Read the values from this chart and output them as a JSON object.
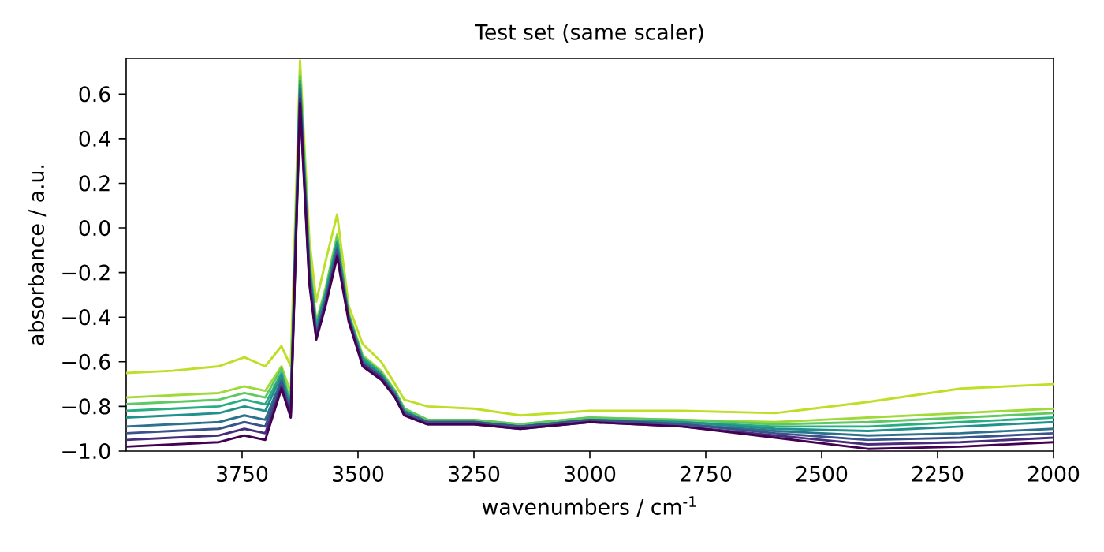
{
  "chart_data": {
    "type": "line",
    "title": "Test set (same scaler)",
    "xlabel": "wavenumbers / cm$^{-1}$",
    "ylabel": "absorbance / a.u.",
    "xlim": [
      4000,
      2000
    ],
    "ylim": [
      -1.0,
      0.76
    ],
    "xticks": [
      3750,
      3500,
      3250,
      3000,
      2750,
      2500,
      2250,
      2000
    ],
    "yticks": [
      {
        "value": -1.0,
        "label": "−1.0"
      },
      {
        "value": -0.8,
        "label": "−0.8"
      },
      {
        "value": -0.6,
        "label": "−0.6"
      },
      {
        "value": -0.4,
        "label": "−0.4"
      },
      {
        "value": -0.2,
        "label": "−0.2"
      },
      {
        "value": 0.0,
        "label": "0.0"
      },
      {
        "value": 0.2,
        "label": "0.2"
      },
      {
        "value": 0.4,
        "label": "0.4"
      },
      {
        "value": 0.6,
        "label": "0.6"
      }
    ],
    "x": [
      4000,
      3900,
      3800,
      3745,
      3700,
      3665,
      3645,
      3625,
      3605,
      3590,
      3570,
      3545,
      3520,
      3490,
      3450,
      3420,
      3400,
      3350,
      3250,
      3150,
      3000,
      2800,
      2600,
      2400,
      2200,
      2000
    ],
    "series": [
      {
        "color": "#bddf26",
        "values": [
          -0.65,
          -0.64,
          -0.62,
          -0.58,
          -0.62,
          -0.53,
          -0.62,
          0.75,
          -0.05,
          -0.33,
          -0.15,
          0.06,
          -0.35,
          -0.52,
          -0.6,
          -0.7,
          -0.77,
          -0.8,
          -0.81,
          -0.84,
          -0.82,
          -0.82,
          -0.83,
          -0.78,
          -0.72,
          -0.7
        ]
      },
      {
        "color": "#a0da39",
        "values": [
          -0.76,
          -0.75,
          -0.74,
          -0.71,
          -0.73,
          -0.62,
          -0.74,
          0.7,
          -0.12,
          -0.42,
          -0.27,
          -0.03,
          -0.38,
          -0.57,
          -0.64,
          -0.73,
          -0.81,
          -0.86,
          -0.86,
          -0.88,
          -0.85,
          -0.86,
          -0.87,
          -0.85,
          -0.83,
          -0.81
        ]
      },
      {
        "color": "#5ec962",
        "values": [
          -0.79,
          -0.78,
          -0.77,
          -0.74,
          -0.76,
          -0.63,
          -0.79,
          0.68,
          -0.14,
          -0.43,
          -0.28,
          -0.04,
          -0.39,
          -0.58,
          -0.65,
          -0.73,
          -0.81,
          -0.86,
          -0.86,
          -0.88,
          -0.85,
          -0.86,
          -0.88,
          -0.87,
          -0.85,
          -0.83
        ]
      },
      {
        "color": "#28ae80",
        "values": [
          -0.82,
          -0.81,
          -0.8,
          -0.77,
          -0.79,
          -0.65,
          -0.8,
          0.66,
          -0.16,
          -0.44,
          -0.29,
          -0.06,
          -0.39,
          -0.58,
          -0.65,
          -0.74,
          -0.82,
          -0.87,
          -0.87,
          -0.89,
          -0.86,
          -0.87,
          -0.89,
          -0.89,
          -0.87,
          -0.85
        ]
      },
      {
        "color": "#21918c",
        "values": [
          -0.85,
          -0.84,
          -0.83,
          -0.8,
          -0.82,
          -0.66,
          -0.81,
          0.64,
          -0.18,
          -0.45,
          -0.3,
          -0.07,
          -0.4,
          -0.59,
          -0.66,
          -0.74,
          -0.82,
          -0.87,
          -0.87,
          -0.89,
          -0.86,
          -0.87,
          -0.9,
          -0.91,
          -0.89,
          -0.87
        ]
      },
      {
        "color": "#2c728e",
        "values": [
          -0.89,
          -0.88,
          -0.87,
          -0.84,
          -0.86,
          -0.68,
          -0.82,
          0.62,
          -0.19,
          -0.47,
          -0.32,
          -0.09,
          -0.4,
          -0.6,
          -0.66,
          -0.75,
          -0.83,
          -0.87,
          -0.87,
          -0.89,
          -0.86,
          -0.88,
          -0.91,
          -0.93,
          -0.92,
          -0.9
        ]
      },
      {
        "color": "#3b528b",
        "values": [
          -0.92,
          -0.91,
          -0.9,
          -0.87,
          -0.89,
          -0.69,
          -0.83,
          0.6,
          -0.21,
          -0.48,
          -0.33,
          -0.1,
          -0.41,
          -0.61,
          -0.67,
          -0.75,
          -0.83,
          -0.87,
          -0.87,
          -0.89,
          -0.86,
          -0.88,
          -0.92,
          -0.95,
          -0.94,
          -0.92
        ]
      },
      {
        "color": "#472d7b",
        "values": [
          -0.95,
          -0.94,
          -0.93,
          -0.9,
          -0.92,
          -0.71,
          -0.84,
          0.58,
          -0.23,
          -0.49,
          -0.34,
          -0.12,
          -0.41,
          -0.61,
          -0.67,
          -0.76,
          -0.84,
          -0.88,
          -0.88,
          -0.9,
          -0.87,
          -0.89,
          -0.93,
          -0.97,
          -0.96,
          -0.94
        ]
      },
      {
        "color": "#440154",
        "values": [
          -0.98,
          -0.97,
          -0.96,
          -0.93,
          -0.95,
          -0.72,
          -0.85,
          0.56,
          -0.25,
          -0.5,
          -0.35,
          -0.13,
          -0.42,
          -0.62,
          -0.68,
          -0.76,
          -0.84,
          -0.88,
          -0.88,
          -0.9,
          -0.87,
          -0.89,
          -0.94,
          -0.99,
          -0.98,
          -0.96
        ]
      }
    ]
  }
}
